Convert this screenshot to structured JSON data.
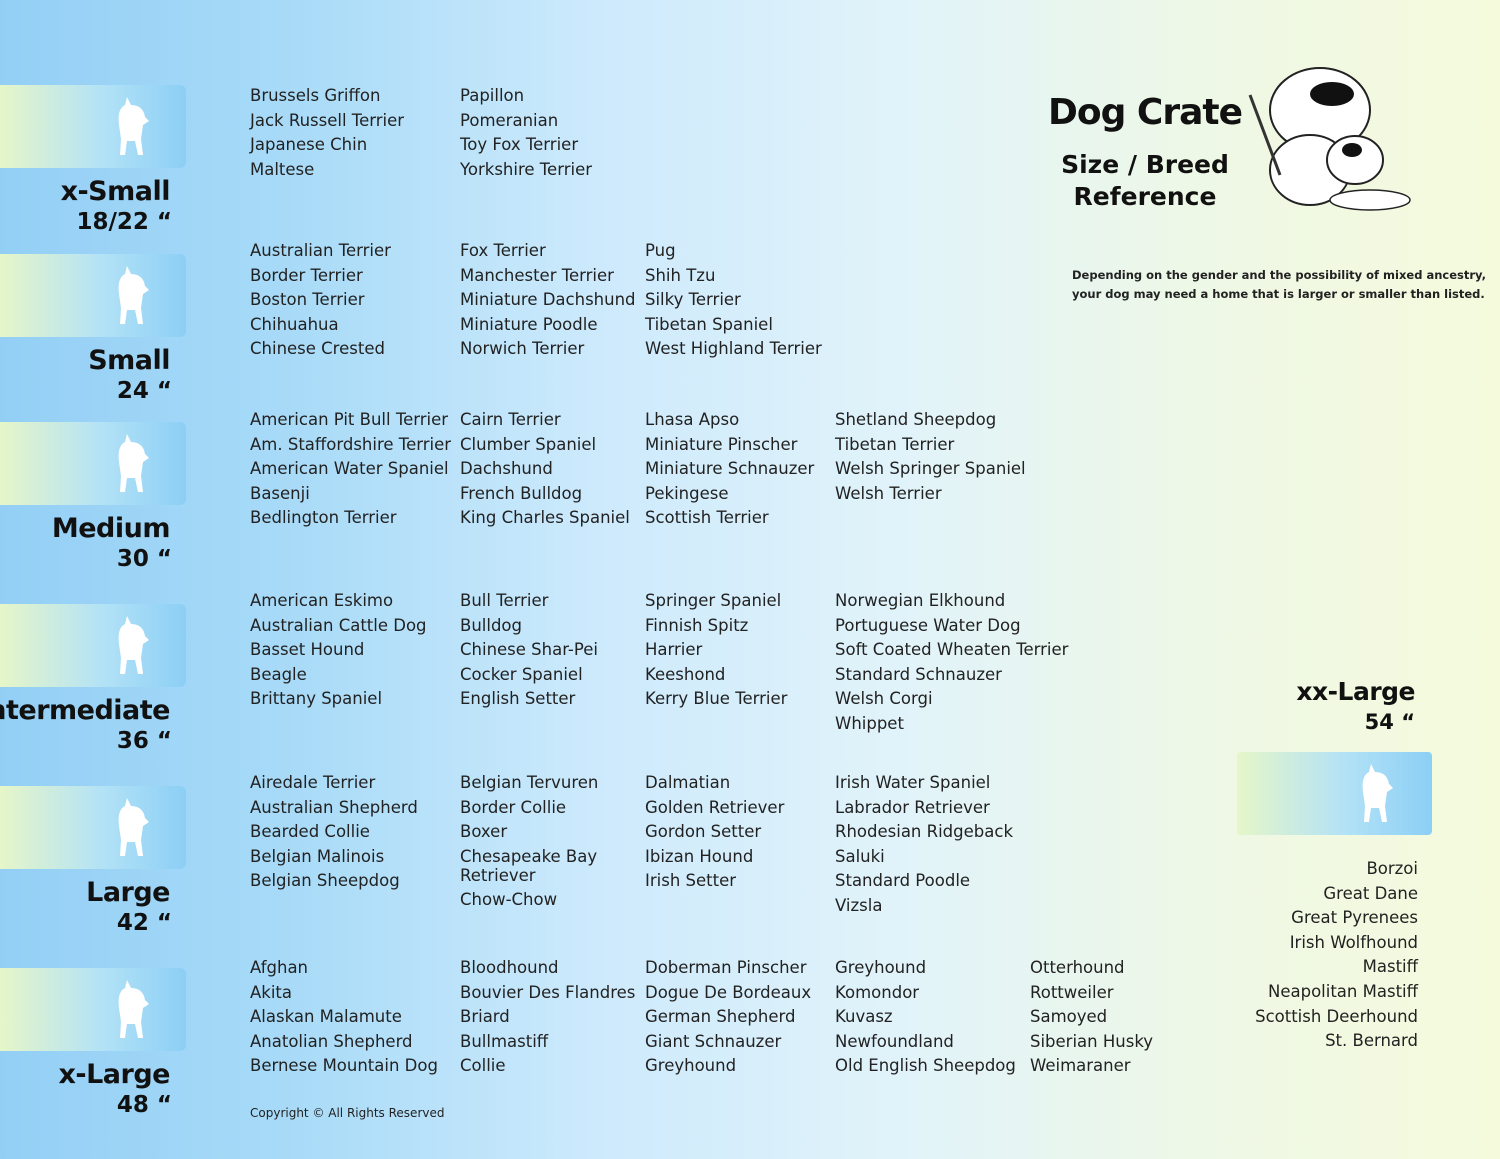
{
  "header": {
    "title": "Dog Crate",
    "subtitle": [
      "Size / Breed",
      "Reference"
    ],
    "note": [
      "Depending on the gender and the possibility of mixed ancestry,",
      "your dog may need  a home that is larger or smaller than listed."
    ]
  },
  "sizes": [
    {
      "name": "x-Small",
      "size": "18/22 “",
      "columns": [
        [
          "Brussels Griffon",
          "Jack Russell Terrier",
          "Japanese Chin",
          "Maltese"
        ],
        [
          "Papillon",
          "Pomeranian",
          "Toy Fox Terrier",
          "Yorkshire Terrier"
        ]
      ]
    },
    {
      "name": "Small",
      "size": "24 “",
      "columns": [
        [
          "Australian Terrier",
          "Border Terrier",
          "Boston Terrier",
          "Chihuahua",
          "Chinese Crested"
        ],
        [
          "Fox Terrier",
          "Manchester Terrier",
          "Miniature Dachshund",
          "Miniature Poodle",
          "Norwich Terrier"
        ],
        [
          "Pug",
          "Shih Tzu",
          "Silky Terrier",
          "Tibetan Spaniel",
          "West Highland Terrier"
        ]
      ]
    },
    {
      "name": "Medium",
      "size": "30 “",
      "columns": [
        [
          "American Pit Bull Terrier",
          "Am. Staffordshire Terrier",
          "American Water Spaniel",
          "Basenji",
          "Bedlington Terrier"
        ],
        [
          "Cairn Terrier",
          "Clumber Spaniel",
          "Dachshund",
          "French Bulldog",
          "King Charles Spaniel"
        ],
        [
          "Lhasa Apso",
          "Miniature Pinscher",
          "Miniature Schnauzer",
          "Pekingese",
          "Scottish Terrier"
        ],
        [
          "Shetland Sheepdog",
          "Tibetan Terrier",
          "Welsh Springer Spaniel",
          "Welsh Terrier"
        ]
      ]
    },
    {
      "name": "Intermediate",
      "size": "36 “",
      "columns": [
        [
          "American Eskimo",
          "Australian Cattle Dog",
          "Basset Hound",
          "Beagle",
          "Brittany Spaniel"
        ],
        [
          "Bull Terrier",
          "Bulldog",
          "Chinese Shar-Pei",
          "Cocker Spaniel",
          "English Setter"
        ],
        [
          "Springer Spaniel",
          "Finnish Spitz",
          "Harrier",
          "Keeshond",
          "Kerry Blue Terrier"
        ],
        [
          "Norwegian Elkhound",
          "Portuguese Water Dog",
          "Soft Coated Wheaten Terrier",
          "Standard Schnauzer",
          "Welsh Corgi",
          "Whippet"
        ]
      ]
    },
    {
      "name": "Large",
      "size": "42 “",
      "columns": [
        [
          "Airedale Terrier",
          "Australian Shepherd",
          "Bearded Collie",
          "Belgian Malinois",
          "Belgian Sheepdog"
        ],
        [
          "Belgian Tervuren",
          "Border Collie",
          "Boxer",
          "Chesapeake Bay Retriever",
          "Chow-Chow"
        ],
        [
          "Dalmatian",
          "Golden Retriever",
          "Gordon Setter",
          "Ibizan Hound",
          "Irish Setter"
        ],
        [
          "Irish Water Spaniel",
          "Labrador Retriever",
          "Rhodesian Ridgeback",
          "Saluki",
          "Standard Poodle",
          "Vizsla"
        ]
      ]
    },
    {
      "name": "x-Large",
      "size": "48 “",
      "columns": [
        [
          "Afghan",
          "Akita",
          "Alaskan Malamute",
          "Anatolian Shepherd",
          "Bernese Mountain Dog"
        ],
        [
          "Bloodhound",
          "Bouvier Des Flandres",
          "Briard",
          "Bullmastiff",
          "Collie"
        ],
        [
          "Doberman Pinscher",
          "Dogue De Bordeaux",
          "German Shepherd",
          "Giant Schnauzer",
          "Greyhound"
        ],
        [
          "Greyhound",
          "Komondor",
          "Kuvasz",
          "Newfoundland",
          "Old English Sheepdog"
        ],
        [
          "Otterhound",
          "Rottweiler",
          "Samoyed",
          "Siberian Husky",
          "Weimaraner"
        ]
      ]
    }
  ],
  "xx_large": {
    "name": "xx-Large",
    "size": "54 “",
    "breeds": [
      "Borzoi",
      "Great Dane",
      "Great Pyrenees",
      "Irish Wolfhound",
      "Mastiff",
      "Neapolitan Mastiff",
      "Scottish Deerhound",
      "St. Bernard"
    ]
  },
  "footer": {
    "copyright": "Copyright © All Rights Reserved"
  }
}
